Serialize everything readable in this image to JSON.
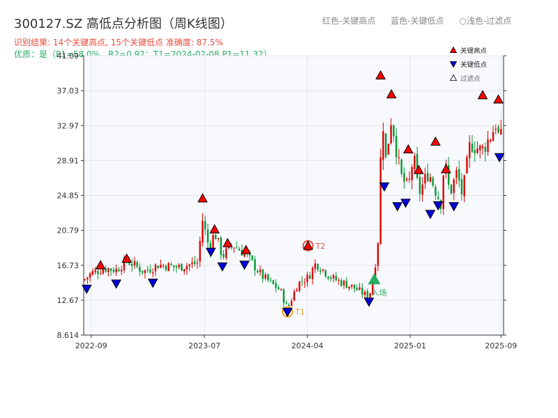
{
  "title": "300127.SZ 高低点分析图（周K线图）",
  "subtitle_result": "识别结果: 14个关键高点, 15个关键低点  准确度: 87.5%",
  "subtitle_quality": "优质：是（P1=58.0%，R2=0.92；T1=2024-02-08 P1=11.32）",
  "legend_top": {
    "red": "红色-关键高点",
    "blue": "蓝色-关键低点",
    "hollow": "○浅色-过滤点"
  },
  "legend": {
    "high": "关键高点",
    "low": "关键低点",
    "filtered": "过滤点"
  },
  "colors": {
    "up": "#e00000",
    "down": "#009933",
    "high_marker": "#ff0000",
    "low_marker": "#0000dd",
    "t1": "#f39c12",
    "t2": "#e74c3c",
    "entry": "#27ae60"
  },
  "chart_data": {
    "type": "candlestick",
    "x_axis": {
      "type": "time",
      "range": [
        "2022-08-12",
        "2025-09-08"
      ]
    },
    "y_axis": {
      "range": [
        8.614,
        41.09
      ]
    },
    "x_ticks": [
      "2022-09",
      "2023-07",
      "2024-04",
      "2025-01",
      "2025-09"
    ],
    "y_ticks": [
      "41.09",
      "37.03",
      "32.97",
      "28.91",
      "24.85",
      "20.79",
      "16.73",
      "12.67",
      "8.614"
    ],
    "grid": true,
    "legend_position": "top-right",
    "anchors": [
      [
        "2022-08-12",
        15.0
      ],
      [
        "2022-09-01",
        15.8
      ],
      [
        "2022-10-06",
        16.4
      ],
      [
        "2022-11-07",
        16.2
      ],
      [
        "2022-12-05",
        17.3
      ],
      [
        "2023-01-20",
        16.0
      ],
      [
        "2023-03-01",
        16.8
      ],
      [
        "2023-04-20",
        16.5
      ],
      [
        "2023-06-12",
        17.0
      ],
      [
        "2023-06-26",
        22.0
      ],
      [
        "2023-07-14",
        18.6
      ],
      [
        "2023-07-28",
        20.6
      ],
      [
        "2023-08-18",
        17.8
      ],
      [
        "2023-09-15",
        19.1
      ],
      [
        "2023-10-20",
        18.0
      ],
      [
        "2023-12-01",
        15.5
      ],
      [
        "2024-01-20",
        13.8
      ],
      [
        "2024-02-08",
        11.6
      ],
      [
        "2024-03-06",
        14.6
      ],
      [
        "2024-04-03",
        15.3
      ],
      [
        "2024-04-24",
        17.0
      ],
      [
        "2024-06-07",
        15.2
      ],
      [
        "2024-08-01",
        14.2
      ],
      [
        "2024-09-13",
        13.0
      ],
      [
        "2024-09-27",
        16.0
      ],
      [
        "2024-10-08",
        20.0
      ],
      [
        "2024-10-18",
        35.0
      ],
      [
        "2024-10-28",
        29.0
      ],
      [
        "2024-11-12",
        34.0
      ],
      [
        "2024-12-06",
        27.2
      ],
      [
        "2024-12-27",
        25.6
      ],
      [
        "2025-01-10",
        29.5
      ],
      [
        "2025-01-24",
        25.0
      ],
      [
        "2025-02-19",
        27.6
      ],
      [
        "2025-03-07",
        25.8
      ],
      [
        "2025-03-24",
        24.0
      ],
      [
        "2025-04-03",
        29.0
      ],
      [
        "2025-04-17",
        25.0
      ],
      [
        "2025-05-06",
        27.5
      ],
      [
        "2025-05-21",
        24.8
      ],
      [
        "2025-06-11",
        31.0
      ],
      [
        "2025-07-11",
        30.0
      ],
      [
        "2025-08-07",
        32.0
      ],
      [
        "2025-08-21",
        33.6
      ],
      [
        "2025-08-28",
        30.5
      ],
      [
        "2025-09-05",
        32.5
      ]
    ],
    "key_highs": [
      {
        "date": "2022-09-26",
        "value": 16.73
      },
      {
        "date": "2022-12-05",
        "value": 17.5
      },
      {
        "date": "2023-06-26",
        "value": 24.5
      },
      {
        "date": "2023-07-28",
        "value": 20.9
      },
      {
        "date": "2023-09-01",
        "value": 19.3
      },
      {
        "date": "2023-10-20",
        "value": 18.5
      },
      {
        "date": "2024-10-14",
        "value": 38.8
      },
      {
        "date": "2024-11-12",
        "value": 36.6
      },
      {
        "date": "2024-12-27",
        "value": 30.2
      },
      {
        "date": "2025-01-24",
        "value": 27.8
      },
      {
        "date": "2025-03-10",
        "value": 31.1
      },
      {
        "date": "2025-04-07",
        "value": 27.9
      },
      {
        "date": "2025-07-14",
        "value": 36.5
      },
      {
        "date": "2025-08-25",
        "value": 36.0
      }
    ],
    "key_lows": [
      {
        "date": "2022-08-20",
        "value": 14.0
      },
      {
        "date": "2022-11-07",
        "value": 14.6
      },
      {
        "date": "2023-02-13",
        "value": 14.7
      },
      {
        "date": "2023-07-18",
        "value": 18.3
      },
      {
        "date": "2023-08-18",
        "value": 16.6
      },
      {
        "date": "2023-10-16",
        "value": 16.8
      },
      {
        "date": "2024-02-08",
        "value": 11.3
      },
      {
        "date": "2024-09-13",
        "value": 12.5
      },
      {
        "date": "2024-10-24",
        "value": 25.9
      },
      {
        "date": "2024-11-28",
        "value": 23.6
      },
      {
        "date": "2024-12-20",
        "value": 24.0
      },
      {
        "date": "2025-02-24",
        "value": 22.7
      },
      {
        "date": "2025-03-17",
        "value": 23.7
      },
      {
        "date": "2025-04-28",
        "value": 23.6
      },
      {
        "date": "2025-08-28",
        "value": 29.3
      }
    ],
    "annotations": [
      {
        "label": "T1",
        "date": "2024-02-08",
        "value": 11.32
      },
      {
        "label": "T2",
        "date": "2024-04-03",
        "value": 19.0
      },
      {
        "label": "入场",
        "date": "2024-09-27",
        "value": 15.0
      }
    ]
  }
}
